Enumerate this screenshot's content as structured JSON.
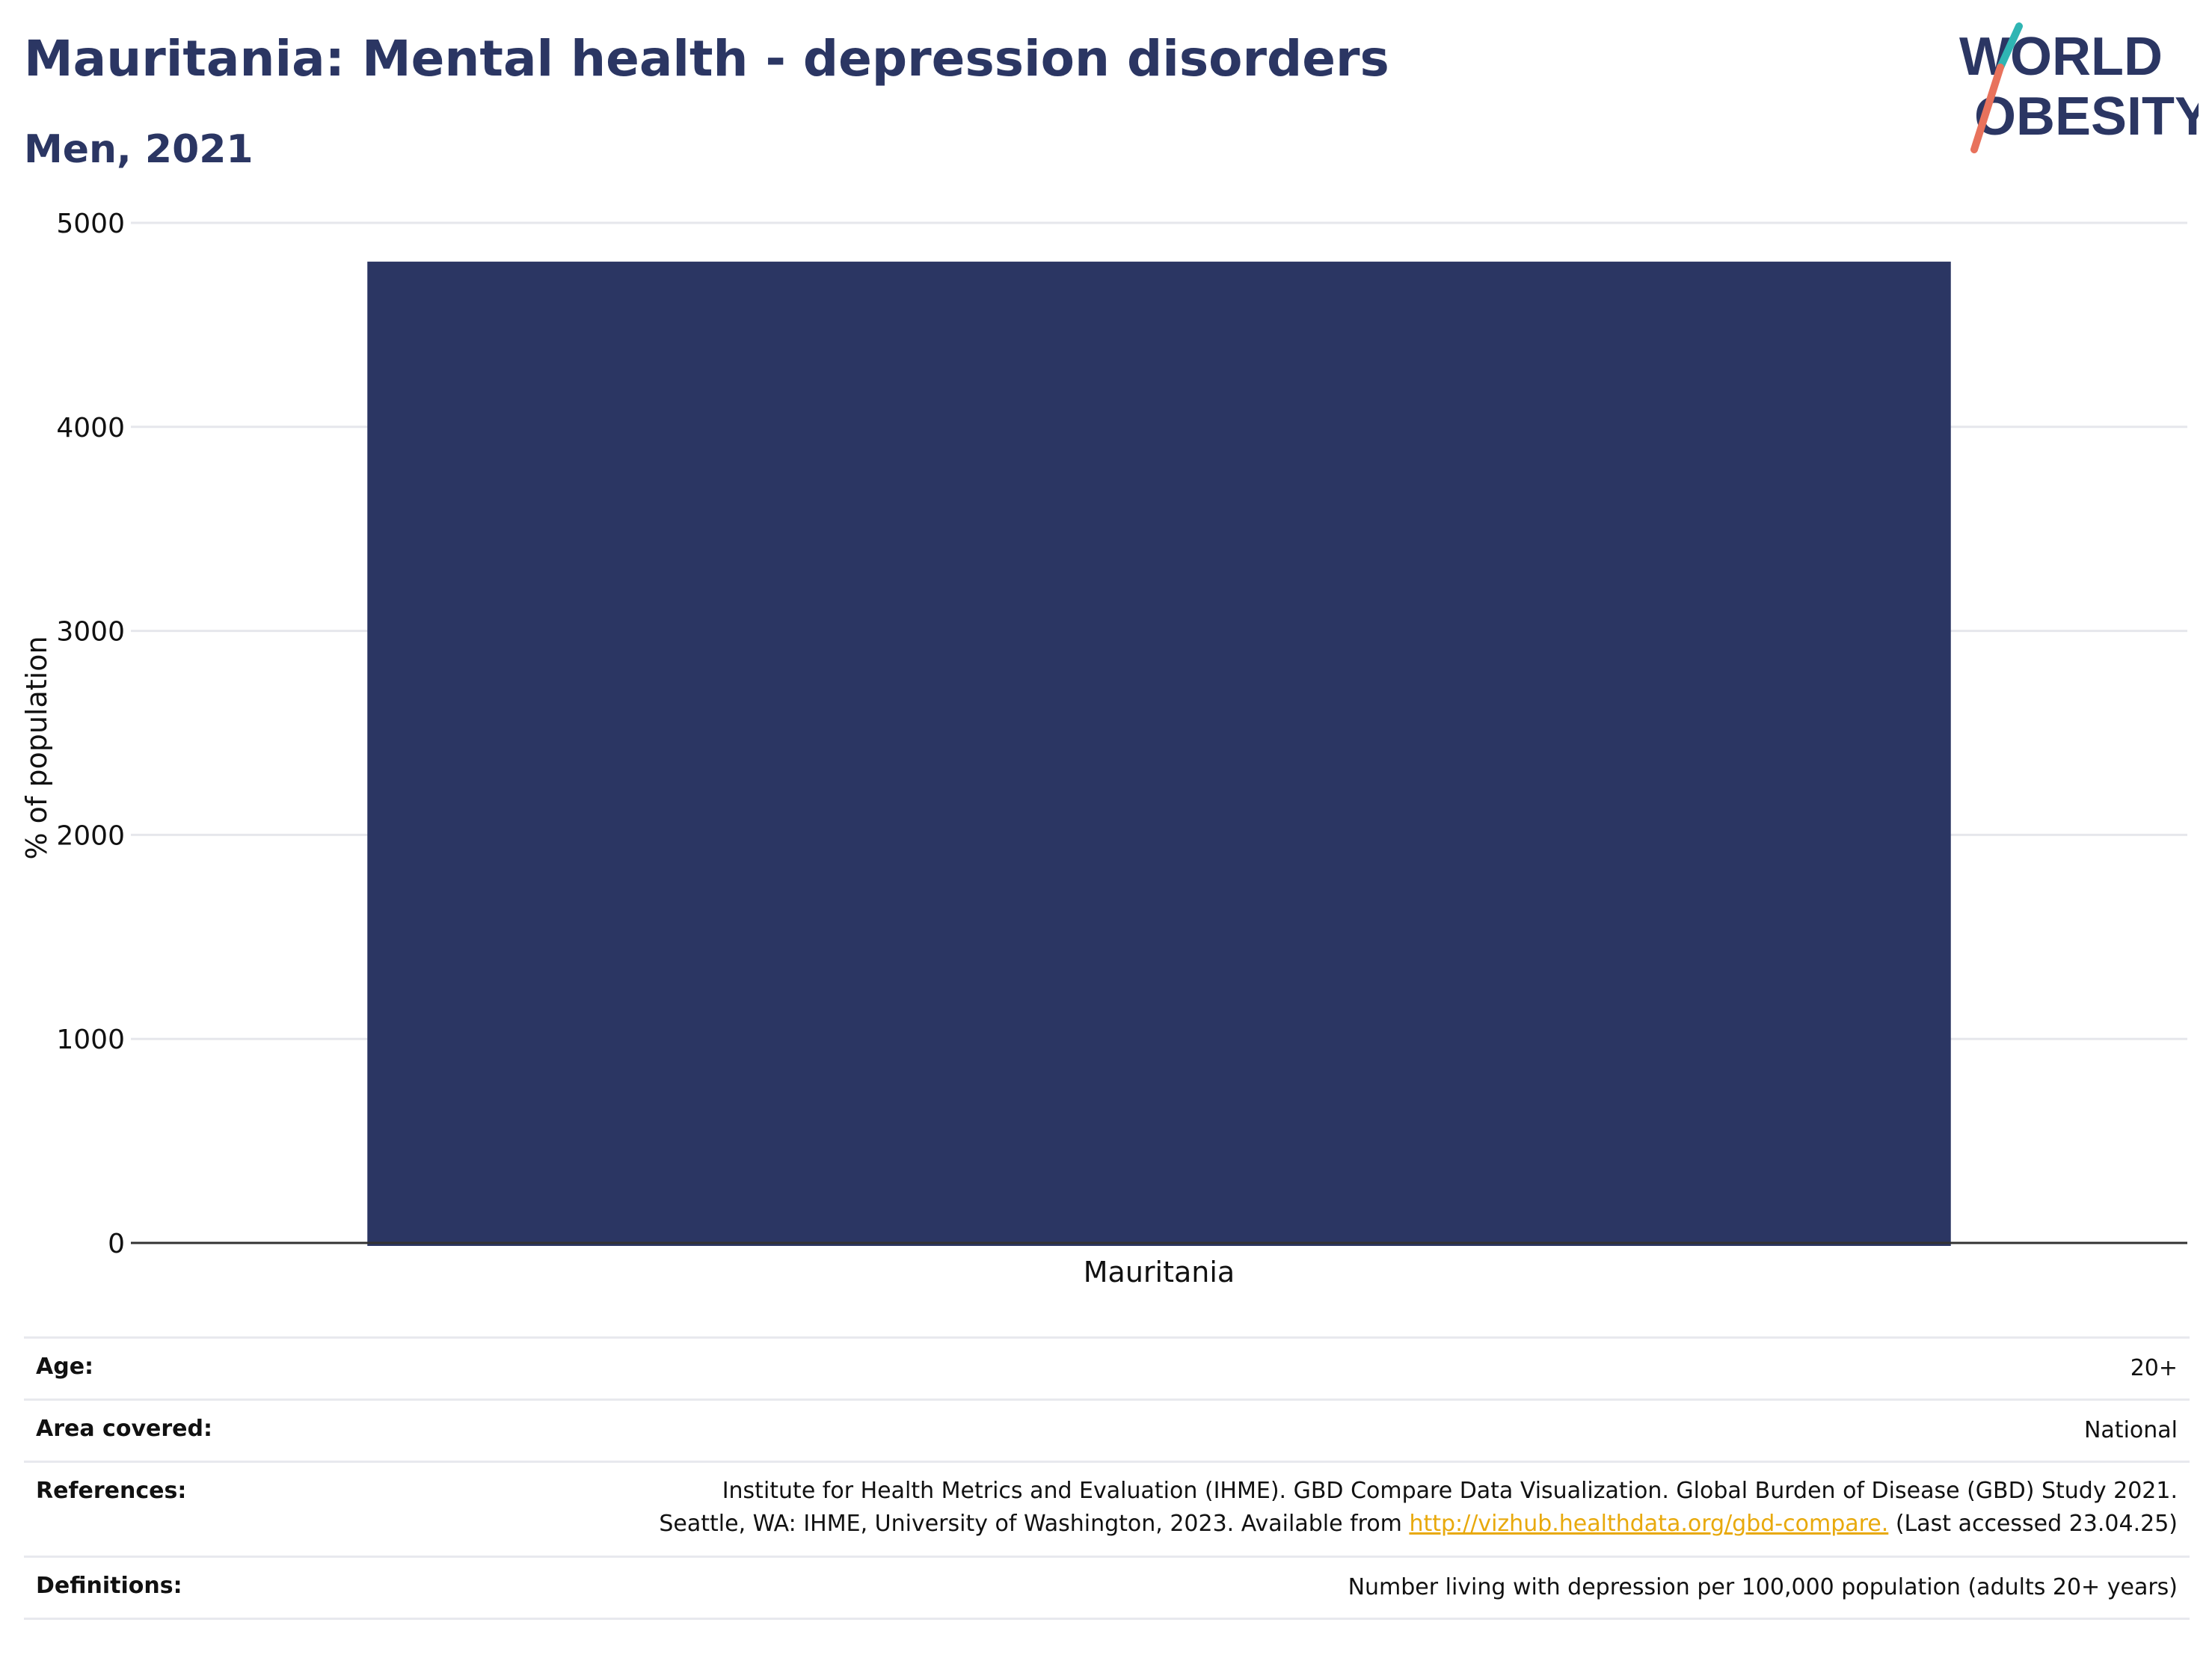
{
  "header": {
    "title": "Mauritania: Mental health - depression disorders",
    "subtitle": "Men, 2021"
  },
  "logo": {
    "word_top": "WORLD",
    "word_bottom": "OBESITY"
  },
  "colors": {
    "bar": "#2b3663",
    "brand": "#2b3663",
    "accent_teal": "#2fb5b3",
    "accent_coral": "#e8725c",
    "link": "#e8a90c"
  },
  "chart_data": {
    "type": "bar",
    "categories": [
      "Mauritania"
    ],
    "values": [
      4810
    ],
    "ylabel": "% of population",
    "xlabel": "",
    "ylim": [
      0,
      5000
    ],
    "yticks": [
      0,
      1000,
      2000,
      3000,
      4000,
      5000
    ],
    "grid": true
  },
  "info": {
    "age_label": "Age:",
    "age_value": "20+",
    "area_label": "Area covered:",
    "area_value": "National",
    "references_label": "References:",
    "references_line1": "Institute for Health Metrics and Evaluation (IHME). GBD Compare Data Visualization. Global Burden of Disease (GBD) Study 2021.",
    "references_line2_prefix": "Seattle, WA: IHME, University of Washington, 2023. Available from ",
    "references_link": "http://vizhub.healthdata.org/gbd-compare.",
    "references_line2_suffix": " (Last accessed 23.04.25)",
    "definitions_label": "Definitions:",
    "definitions_value": "Number living with depression per 100,000 population (adults 20+ years)"
  }
}
